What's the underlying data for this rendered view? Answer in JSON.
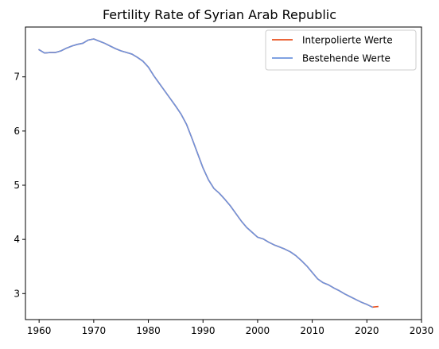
{
  "colors": {
    "interpolated": "#e8501e",
    "existing": "#6e94de",
    "axes": "#000000",
    "background": "#ffffff"
  },
  "chart_data": {
    "type": "line",
    "title": "Fertility Rate of Syrian Arab Republic",
    "xlabel": "",
    "ylabel": "",
    "xlim": [
      1957.5,
      2030
    ],
    "ylim": [
      2.52,
      7.92
    ],
    "x_ticks": [
      1960,
      1970,
      1980,
      1990,
      2000,
      2010,
      2020,
      2030
    ],
    "y_ticks": [
      3,
      4,
      5,
      6,
      7
    ],
    "grid": false,
    "legend_position": "top-right",
    "series": [
      {
        "name": "Interpolierte Werte",
        "color": "#e8501e",
        "x": [
          1960,
          1961,
          1962,
          1963,
          1964,
          1965,
          1966,
          1967,
          1968,
          1969,
          1970,
          1971,
          1972,
          1973,
          1974,
          1975,
          1976,
          1977,
          1978,
          1979,
          1980,
          1981,
          1982,
          1983,
          1984,
          1985,
          1986,
          1987,
          1988,
          1989,
          1990,
          1991,
          1992,
          1993,
          1994,
          1995,
          1996,
          1997,
          1998,
          1999,
          2000,
          2001,
          2002,
          2003,
          2004,
          2005,
          2006,
          2007,
          2008,
          2009,
          2010,
          2011,
          2012,
          2013,
          2014,
          2015,
          2016,
          2017,
          2018,
          2019,
          2020,
          2021,
          2022
        ],
        "y": [
          7.5,
          7.44,
          7.45,
          7.45,
          7.48,
          7.53,
          7.57,
          7.6,
          7.62,
          7.68,
          7.7,
          7.66,
          7.62,
          7.57,
          7.52,
          7.48,
          7.45,
          7.42,
          7.36,
          7.29,
          7.18,
          7.02,
          6.88,
          6.74,
          6.6,
          6.46,
          6.31,
          6.12,
          5.86,
          5.59,
          5.32,
          5.1,
          4.94,
          4.85,
          4.74,
          4.62,
          4.48,
          4.34,
          4.22,
          4.13,
          4.04,
          4.01,
          3.95,
          3.9,
          3.86,
          3.82,
          3.77,
          3.7,
          3.61,
          3.51,
          3.39,
          3.27,
          3.2,
          3.16,
          3.1,
          3.05,
          2.99,
          2.94,
          2.89,
          2.84,
          2.8,
          2.75,
          2.76
        ]
      },
      {
        "name": "Bestehende Werte",
        "color": "#6e94de",
        "x": [
          1960,
          1961,
          1962,
          1963,
          1964,
          1965,
          1966,
          1967,
          1968,
          1969,
          1970,
          1971,
          1972,
          1973,
          1974,
          1975,
          1976,
          1977,
          1978,
          1979,
          1980,
          1981,
          1982,
          1983,
          1984,
          1985,
          1986,
          1987,
          1988,
          1989,
          1990,
          1991,
          1992,
          1993,
          1994,
          1995,
          1996,
          1997,
          1998,
          1999,
          2000,
          2001,
          2002,
          2003,
          2004,
          2005,
          2006,
          2007,
          2008,
          2009,
          2010,
          2011,
          2012,
          2013,
          2014,
          2015,
          2016,
          2017,
          2018,
          2019,
          2020,
          2021
        ],
        "y": [
          7.5,
          7.44,
          7.45,
          7.45,
          7.48,
          7.53,
          7.57,
          7.6,
          7.62,
          7.68,
          7.7,
          7.66,
          7.62,
          7.57,
          7.52,
          7.48,
          7.45,
          7.42,
          7.36,
          7.29,
          7.18,
          7.02,
          6.88,
          6.74,
          6.6,
          6.46,
          6.31,
          6.12,
          5.86,
          5.59,
          5.32,
          5.1,
          4.94,
          4.85,
          4.74,
          4.62,
          4.48,
          4.34,
          4.22,
          4.13,
          4.04,
          4.01,
          3.95,
          3.9,
          3.86,
          3.82,
          3.77,
          3.7,
          3.61,
          3.51,
          3.39,
          3.27,
          3.2,
          3.16,
          3.1,
          3.05,
          2.99,
          2.94,
          2.89,
          2.84,
          2.8,
          2.75
        ]
      }
    ]
  }
}
